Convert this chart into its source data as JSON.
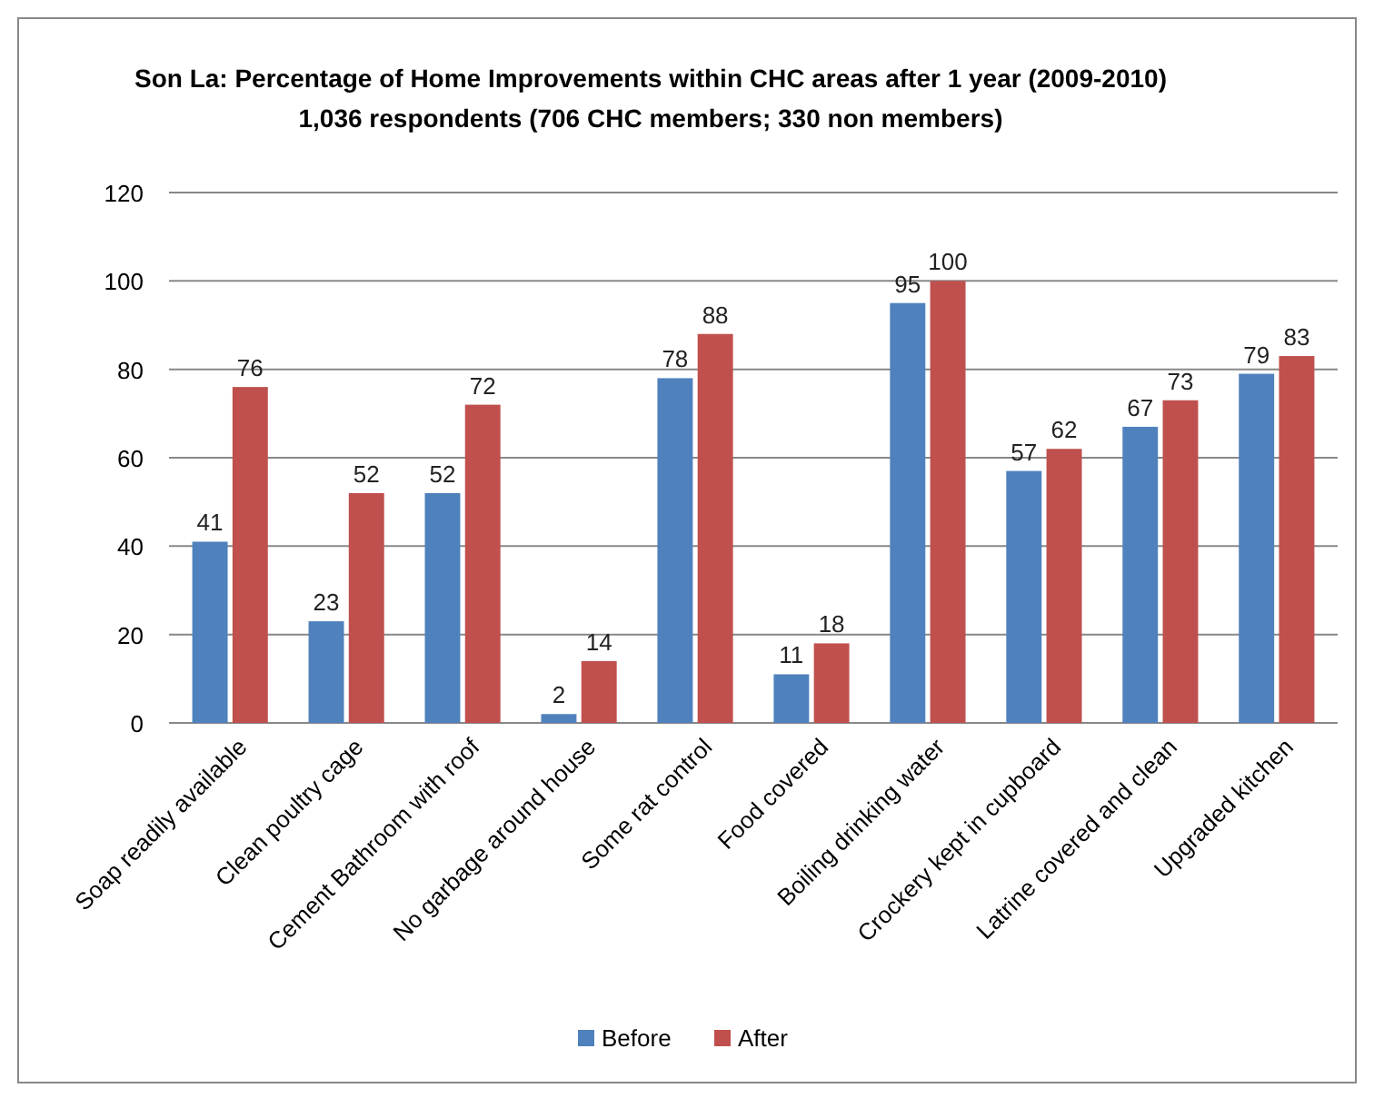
{
  "chart_data": {
    "type": "bar",
    "title": "Son La: Percentage of Home Improvements within  CHC areas after 1 year (2009-2010)",
    "subtitle": "1,036 respondents (706 CHC members; 330 non members)",
    "categories": [
      "Soap readily available",
      "Clean poultry cage",
      "Cement Bathroom with roof",
      "No garbage around house",
      "Some rat control",
      "Food covered",
      "Boiling drinking water",
      "Crockery kept in cupboard",
      "Latrine covered and clean",
      "Upgraded kitchen"
    ],
    "series": [
      {
        "name": "Before",
        "color": "#4f81bd",
        "values": [
          41,
          23,
          52,
          2,
          78,
          11,
          95,
          57,
          67,
          79
        ]
      },
      {
        "name": "After",
        "color": "#c0504d",
        "values": [
          76,
          52,
          72,
          14,
          88,
          18,
          100,
          62,
          73,
          83
        ]
      }
    ],
    "ylim": [
      0,
      120
    ],
    "yticks": [
      0,
      20,
      40,
      60,
      80,
      100,
      120
    ],
    "grid": "y",
    "legend": "bottom",
    "data_labels": true
  }
}
